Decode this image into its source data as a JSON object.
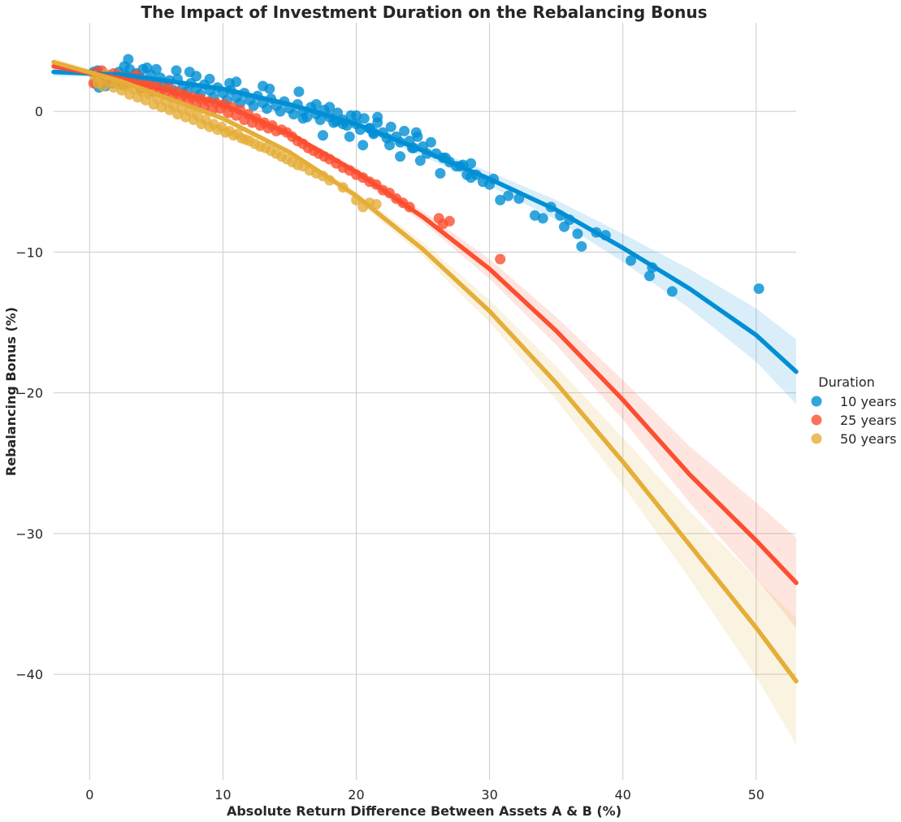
{
  "chart_data": {
    "type": "scatter",
    "title": "The Impact of Investment Duration on the Rebalancing Bonus",
    "xlabel": "Absolute Return Difference Between Assets A & B (%)",
    "ylabel": "Rebalancing Bonus (%)",
    "xlim": [
      -2.7,
      53
    ],
    "ylim": [
      -47.5,
      6.3
    ],
    "xticks": [
      0,
      10,
      20,
      30,
      40,
      50
    ],
    "yticks": [
      0,
      -10,
      -20,
      -30,
      -40
    ],
    "grid": true,
    "legend": {
      "title": "Duration",
      "placement": "center-right",
      "entries": [
        "10 years",
        "25 years",
        "50 years"
      ]
    },
    "series": [
      {
        "name": "10 years",
        "color": "#008fd5",
        "fit": {
          "type": "quadratic",
          "x": [
            -2.7,
            2.6,
            10,
            15,
            20,
            25,
            30,
            35,
            40,
            45,
            50,
            53
          ],
          "y": [
            2.8,
            2.6,
            1.6,
            0.5,
            -0.9,
            -2.8,
            -4.8,
            -7.0,
            -9.7,
            -12.6,
            -15.9,
            -18.5
          ],
          "ci_width": [
            0.3,
            0.2,
            0.2,
            0.2,
            0.3,
            0.4,
            0.5,
            0.7,
            1.0,
            1.4,
            1.9,
            2.3
          ]
        },
        "points_x": [
          0.3,
          0.5,
          0.6,
          0.7,
          0.8,
          0.9,
          1.0,
          1.2,
          1.5,
          1.7,
          2.0,
          2.2,
          2.4,
          2.6,
          2.8,
          3.0,
          3.2,
          3.5,
          3.8,
          4.0,
          4.3,
          4.6,
          5.0,
          5.3,
          5.6,
          6.0,
          6.3,
          6.6,
          7.0,
          7.3,
          7.6,
          8.0,
          8.3,
          8.6,
          9.0,
          9.3,
          9.6,
          10.0,
          10.3,
          10.6,
          11.0,
          11.3,
          11.6,
          12.0,
          12.3,
          12.6,
          13.0,
          13.3,
          13.6,
          14.0,
          14.3,
          14.6,
          15.0,
          15.3,
          15.6,
          16.0,
          16.3,
          16.6,
          17.0,
          17.3,
          17.6,
          18.0,
          18.3,
          18.6,
          19.0,
          19.3,
          19.6,
          20.0,
          20.3,
          20.6,
          21.0,
          21.3,
          21.6,
          22.0,
          22.3,
          22.6,
          23.0,
          23.3,
          23.6,
          24.0,
          24.3,
          24.6,
          25.0,
          25.3,
          25.6,
          26.0,
          26.5,
          27.0,
          27.5,
          28.0,
          28.3,
          28.6,
          29.0,
          29.5,
          30.0,
          30.3,
          30.8,
          31.4,
          32.2,
          33.4,
          34.0,
          34.6,
          35.3,
          35.6,
          36.0,
          36.6,
          36.9,
          38.0,
          38.7,
          40.6,
          42.0,
          42.2,
          43.7,
          50.2,
          2.9,
          4.3,
          5.0,
          6.5,
          7.5,
          8.0,
          9.0,
          10.5,
          11.0,
          13.0,
          13.5,
          15.7,
          16.0,
          17.0,
          17.5,
          18.0,
          18.5,
          19.0,
          19.5,
          20.0,
          20.5,
          21.0,
          21.3,
          21.6,
          22.5,
          23.3,
          24.2,
          24.5,
          24.8,
          26.3,
          26.7,
          27.8,
          28.6
        ],
        "points_y": [
          2.8,
          2.0,
          2.9,
          1.7,
          2.2,
          2.5,
          2.0,
          1.8,
          2.3,
          2.0,
          2.5,
          2.8,
          1.9,
          3.2,
          2.5,
          3.0,
          2.2,
          2.7,
          2.4,
          3.0,
          2.1,
          2.6,
          2.0,
          2.4,
          1.8,
          2.2,
          1.5,
          2.3,
          1.8,
          1.4,
          2.0,
          1.6,
          1.2,
          1.9,
          1.5,
          1.0,
          1.7,
          1.3,
          0.8,
          1.5,
          1.0,
          0.6,
          1.3,
          0.8,
          0.4,
          1.1,
          0.6,
          0.2,
          0.9,
          0.4,
          0.0,
          0.7,
          0.2,
          -0.2,
          0.5,
          0.0,
          -0.4,
          0.3,
          -0.2,
          -0.6,
          0.1,
          -0.4,
          -0.8,
          -0.1,
          -0.6,
          -1.0,
          -0.3,
          -0.9,
          -1.3,
          -0.5,
          -1.2,
          -1.6,
          -0.8,
          -1.5,
          -1.9,
          -1.1,
          -1.8,
          -2.2,
          -1.4,
          -2.1,
          -2.6,
          -1.8,
          -2.5,
          -3.0,
          -2.2,
          -3.0,
          -3.3,
          -3.6,
          -3.9,
          -3.8,
          -4.5,
          -4.7,
          -4.5,
          -5.0,
          -5.2,
          -4.8,
          -6.3,
          -6.0,
          -6.2,
          -7.4,
          -7.6,
          -6.8,
          -7.4,
          -8.2,
          -7.7,
          -8.7,
          -9.6,
          -8.6,
          -8.8,
          -10.6,
          -11.7,
          -11.1,
          -12.8,
          -12.6,
          3.7,
          3.1,
          3.0,
          2.9,
          2.8,
          2.5,
          2.3,
          2.0,
          2.1,
          1.8,
          1.6,
          1.4,
          -0.5,
          0.5,
          -1.7,
          0.3,
          -0.7,
          -0.9,
          -1.8,
          -0.3,
          -2.4,
          -1.2,
          -1.5,
          -0.4,
          -2.4,
          -3.2,
          -2.6,
          -1.5,
          -3.5,
          -4.4,
          -3.3,
          -3.9,
          -3.7
        ],
        "point_color": "#008fd5"
      },
      {
        "name": "25 years",
        "color": "#fc4f30",
        "fit": {
          "type": "quadratic",
          "x": [
            -2.7,
            2.5,
            10,
            15,
            20,
            25,
            30,
            35,
            40,
            45,
            50,
            53
          ],
          "y": [
            3.2,
            2.3,
            0.5,
            -1.6,
            -4.3,
            -7.5,
            -11.2,
            -15.6,
            -20.5,
            -25.8,
            -30.5,
            -33.5
          ],
          "ci_width": [
            0.3,
            0.2,
            0.2,
            0.2,
            0.3,
            0.4,
            0.7,
            1.0,
            1.4,
            2.0,
            2.7,
            3.2
          ]
        },
        "points_x": [
          0.3,
          0.5,
          0.7,
          0.9,
          1.1,
          1.3,
          1.5,
          1.8,
          2.0,
          2.3,
          2.6,
          2.9,
          3.2,
          3.5,
          3.8,
          4.1,
          4.4,
          4.7,
          5.0,
          5.3,
          5.6,
          5.9,
          6.2,
          6.5,
          6.8,
          7.1,
          7.4,
          7.7,
          8.0,
          8.3,
          8.6,
          8.9,
          9.2,
          9.5,
          9.8,
          10.1,
          10.4,
          10.7,
          11.0,
          11.3,
          11.6,
          11.9,
          12.2,
          12.5,
          12.8,
          13.1,
          13.4,
          13.7,
          14.0,
          14.4,
          14.8,
          15.2,
          15.6,
          16.0,
          16.4,
          16.8,
          17.2,
          17.6,
          18.0,
          18.5,
          19.0,
          19.5,
          20.0,
          20.5,
          21.0,
          21.5,
          22.0,
          22.5,
          23.0,
          23.5,
          24.0,
          26.2,
          26.5,
          27.0,
          30.8
        ],
        "points_y": [
          2.0,
          2.8,
          2.5,
          2.9,
          2.2,
          2.6,
          2.3,
          2.7,
          2.1,
          2.5,
          1.9,
          2.4,
          2.0,
          2.6,
          1.6,
          2.2,
          1.8,
          1.4,
          2.0,
          1.5,
          1.2,
          1.8,
          1.0,
          1.4,
          0.9,
          1.2,
          0.7,
          1.0,
          0.5,
          0.9,
          0.3,
          0.7,
          0.1,
          0.6,
          0.2,
          0.5,
          -0.1,
          0.3,
          -0.3,
          0.1,
          -0.6,
          -0.2,
          -0.8,
          -0.5,
          -1.0,
          -0.8,
          -1.2,
          -1.0,
          -1.4,
          -1.3,
          -1.5,
          -1.8,
          -2.1,
          -2.3,
          -2.6,
          -2.8,
          -3.0,
          -3.2,
          -3.4,
          -3.7,
          -4.0,
          -4.2,
          -4.5,
          -4.7,
          -5.0,
          -5.2,
          -5.6,
          -5.8,
          -6.2,
          -6.5,
          -6.8,
          -7.6,
          -8.0,
          -7.8,
          -10.5
        ],
        "point_color": "#fc4f30"
      },
      {
        "name": "50 years",
        "color": "#e5ae38",
        "fit": {
          "type": "quadratic",
          "x": [
            -2.7,
            2.5,
            10,
            15,
            20,
            25,
            30,
            35,
            40,
            45,
            50,
            53
          ],
          "y": [
            3.5,
            2.1,
            -0.5,
            -2.9,
            -6.0,
            -9.8,
            -14.2,
            -19.3,
            -24.9,
            -30.8,
            -36.7,
            -40.5
          ],
          "ci_width": [
            0.3,
            0.2,
            0.2,
            0.2,
            0.3,
            0.5,
            0.8,
            1.2,
            1.7,
            2.4,
            3.5,
            4.5
          ]
        },
        "points_x": [
          0.4,
          0.6,
          0.8,
          1.0,
          1.2,
          1.5,
          1.8,
          2.1,
          2.4,
          2.7,
          3.0,
          3.3,
          3.6,
          3.9,
          4.2,
          4.5,
          4.8,
          5.1,
          5.4,
          5.7,
          6.0,
          6.3,
          6.6,
          6.9,
          7.2,
          7.5,
          7.8,
          8.1,
          8.4,
          8.7,
          9.0,
          9.3,
          9.6,
          9.9,
          10.2,
          10.5,
          10.8,
          11.1,
          11.4,
          11.7,
          12.0,
          12.4,
          12.8,
          13.2,
          13.6,
          14.0,
          14.4,
          14.8,
          15.2,
          15.6,
          16.0,
          16.5,
          17.0,
          17.5,
          18.0,
          19.0,
          20.0,
          20.5,
          21.0,
          21.5
        ],
        "points_y": [
          2.5,
          2.0,
          2.3,
          1.8,
          2.6,
          2.1,
          1.7,
          2.0,
          1.5,
          1.8,
          1.2,
          1.6,
          1.0,
          1.4,
          0.8,
          1.2,
          0.5,
          0.9,
          0.3,
          0.7,
          0.1,
          0.4,
          -0.2,
          0.2,
          -0.4,
          0.0,
          -0.6,
          -0.3,
          -0.9,
          -0.6,
          -1.1,
          -0.9,
          -1.3,
          -1.1,
          -1.5,
          -1.4,
          -1.7,
          -1.6,
          -1.9,
          -2.0,
          -2.1,
          -2.3,
          -2.5,
          -2.6,
          -2.8,
          -3.0,
          -3.2,
          -3.4,
          -3.6,
          -3.8,
          -3.9,
          -4.2,
          -4.4,
          -4.6,
          -4.9,
          -5.4,
          -6.3,
          -6.8,
          -6.5,
          -6.6
        ],
        "point_color": "#e5ae38"
      }
    ]
  }
}
